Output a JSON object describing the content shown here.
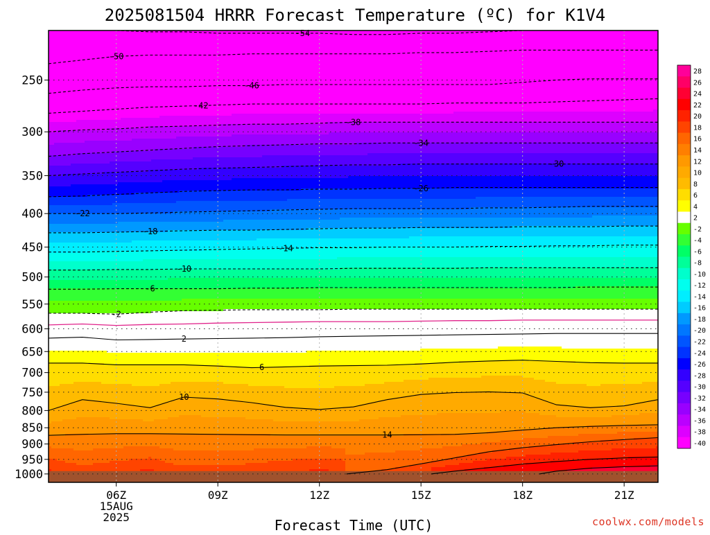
{
  "chart_data": {
    "type": "heatmap",
    "title": "2025081504 HRRR Forecast Temperature (ºC) for K1V4",
    "xlabel": "Forecast Time (UTC)",
    "ylabel": "",
    "x_ticks": [
      {
        "hour": 6,
        "lines": [
          "06Z",
          "15AUG",
          "2025"
        ]
      },
      {
        "hour": 9,
        "lines": [
          "09Z"
        ]
      },
      {
        "hour": 12,
        "lines": [
          "12Z"
        ]
      },
      {
        "hour": 15,
        "lines": [
          "15Z"
        ]
      },
      {
        "hour": 18,
        "lines": [
          "18Z"
        ]
      },
      {
        "hour": 21,
        "lines": [
          "21Z"
        ]
      }
    ],
    "x_range_hours": [
      4,
      22
    ],
    "y_axis": {
      "log_scale": true,
      "direction": "pressure decreasing upward",
      "range_hpa": [
        1030,
        210
      ],
      "tick_labels": [
        "250",
        "300",
        "350",
        "400",
        "450",
        "500",
        "550",
        "600",
        "650",
        "700",
        "750",
        "800",
        "850",
        "900",
        "950",
        "1000"
      ],
      "grid": "dotted"
    },
    "colorbar": {
      "levels": [
        28,
        26,
        24,
        22,
        20,
        18,
        16,
        14,
        12,
        10,
        8,
        6,
        4,
        2,
        -2,
        -4,
        -6,
        -8,
        -10,
        -12,
        -14,
        -16,
        -18,
        -20,
        -22,
        -24,
        -26,
        -28,
        -30,
        -32,
        -34,
        -36,
        -38,
        -40
      ],
      "colors": [
        "#ff0099",
        "#ff0066",
        "#ff0033",
        "#ff0000",
        "#ff2200",
        "#ff4400",
        "#ff6600",
        "#ff7f00",
        "#ff9900",
        "#ffaa00",
        "#ffbb00",
        "#ffdd00",
        "#ffff00",
        "#ffffff",
        "#66ff00",
        "#33ff33",
        "#00ff66",
        "#00ff99",
        "#00ffcc",
        "#00ffee",
        "#00eeff",
        "#00ccff",
        "#0099ff",
        "#0077ff",
        "#0055ff",
        "#0033ff",
        "#0000ff",
        "#3300ff",
        "#5500ff",
        "#7700ff",
        "#9900ff",
        "#bb00ff",
        "#dd00ff",
        "#ff00ff"
      ],
      "ground_color": "#a0522d"
    },
    "hours": [
      4,
      5,
      6,
      7,
      8,
      9,
      10,
      11,
      12,
      13,
      14,
      15,
      16,
      17,
      18,
      19,
      20,
      21,
      22
    ],
    "isotherms": [
      {
        "value": -54,
        "label": "-54",
        "label_at_hour": 11.5,
        "color": "#000000",
        "dashed": true,
        "p": [
          208,
          209,
          210,
          211,
          211,
          212,
          212,
          212,
          212,
          213,
          213,
          212,
          212,
          211,
          210,
          210,
          210,
          210,
          210
        ]
      },
      {
        "value": -50,
        "label": "-50",
        "label_at_hour": 6,
        "color": "#000000",
        "dashed": true,
        "p": [
          236,
          233,
          230,
          229,
          229,
          229,
          228,
          228,
          228,
          228,
          228,
          227,
          227,
          226,
          225,
          225,
          225,
          225,
          225
        ]
      },
      {
        "value": -46,
        "label": "-46",
        "label_at_hour": 10,
        "color": "#000000",
        "dashed": true,
        "p": [
          262,
          259,
          257,
          256,
          256,
          255,
          255,
          254,
          254,
          254,
          254,
          254,
          254,
          254,
          252,
          250,
          249,
          249,
          249
        ]
      },
      {
        "value": -42,
        "label": "-42",
        "label_at_hour": 8.5,
        "color": "#000000",
        "dashed": true,
        "p": [
          281,
          279,
          277,
          275,
          274,
          273,
          272,
          272,
          272,
          272,
          272,
          272,
          271,
          271,
          271,
          270,
          269,
          268,
          267
        ]
      },
      {
        "value": -38,
        "label": "-38",
        "label_at_hour": 13,
        "color": "#000000",
        "dashed": true,
        "p": [
          300,
          298,
          297,
          295,
          294,
          293,
          292,
          292,
          291,
          290,
          290,
          290,
          290,
          290,
          290,
          290,
          290,
          290,
          290
        ]
      },
      {
        "value": -34,
        "label": "-34",
        "label_at_hour": 15,
        "color": "#000000",
        "dashed": true,
        "p": [
          327,
          324,
          322,
          320,
          318,
          316,
          315,
          314,
          313,
          313,
          312,
          312,
          312,
          312,
          312,
          312,
          312,
          312,
          312
        ]
      },
      {
        "value": -30,
        "label": "-30",
        "label_at_hour": 19,
        "color": "#000000",
        "dashed": true,
        "p": [
          350,
          348,
          346,
          344,
          342,
          341,
          340,
          339,
          338,
          337,
          337,
          336,
          336,
          336,
          336,
          336,
          336,
          336,
          336
        ]
      },
      {
        "value": -26,
        "label": "-26",
        "label_at_hour": 15,
        "color": "#000000",
        "dashed": true,
        "p": [
          377,
          376,
          374,
          372,
          370,
          369,
          368,
          368,
          367,
          367,
          366,
          366,
          365,
          365,
          365,
          365,
          365,
          365,
          365
        ]
      },
      {
        "value": -22,
        "label": "-22",
        "label_at_hour": 5,
        "color": "#000000",
        "dashed": true,
        "p": [
          400,
          400,
          400,
          399,
          398,
          397,
          396,
          395,
          394,
          393,
          393,
          393,
          393,
          392,
          392,
          391,
          390,
          390,
          390
        ]
      },
      {
        "value": -18,
        "label": "-18",
        "label_at_hour": 7,
        "color": "#000000",
        "dashed": true,
        "p": [
          428,
          428,
          427,
          426,
          425,
          424,
          424,
          423,
          422,
          421,
          421,
          420,
          420,
          420,
          419,
          419,
          419,
          418,
          418
        ]
      },
      {
        "value": -14,
        "label": "-14",
        "label_at_hour": 11,
        "color": "#000000",
        "dashed": true,
        "p": [
          458,
          458,
          457,
          456,
          455,
          454,
          453,
          452,
          451,
          451,
          450,
          450,
          450,
          449,
          449,
          448,
          448,
          447,
          447
        ]
      },
      {
        "value": -10,
        "label": "-10",
        "label_at_hour": 8,
        "color": "#000000",
        "dashed": true,
        "p": [
          488,
          488,
          487,
          487,
          486,
          486,
          486,
          486,
          486,
          485,
          485,
          485,
          485,
          484,
          484,
          484,
          484,
          484,
          484
        ]
      },
      {
        "value": -6,
        "label": "-6",
        "label_at_hour": 7,
        "color": "#000000",
        "dashed": true,
        "p": [
          522,
          522,
          521,
          521,
          521,
          521,
          520,
          520,
          519,
          519,
          519,
          519,
          519,
          519,
          519,
          519,
          518,
          518,
          518
        ]
      },
      {
        "value": -2,
        "label": "-2",
        "label_at_hour": 6,
        "color": "#000000",
        "dashed": true,
        "p": [
          568,
          568,
          570,
          566,
          563,
          562,
          561,
          561,
          561,
          560,
          560,
          560,
          560,
          560,
          560,
          560,
          560,
          560,
          560
        ]
      },
      {
        "value": 0,
        "label": "",
        "label_at_hour": null,
        "color": "#e0218a",
        "dashed": false,
        "p": [
          592,
          590,
          593,
          591,
          590,
          588,
          587,
          586,
          585,
          585,
          585,
          584,
          583,
          583,
          582,
          582,
          582,
          582,
          582
        ]
      },
      {
        "value": 2,
        "label": "2",
        "label_at_hour": 8,
        "color": "#000000",
        "dashed": false,
        "p": [
          620,
          618,
          624,
          623,
          622,
          621,
          620,
          619,
          617,
          616,
          615,
          614,
          613,
          612,
          611,
          610,
          610,
          610,
          610
        ]
      },
      {
        "value": 6,
        "label": "6",
        "label_at_hour": 10.3,
        "color": "#000000",
        "dashed": false,
        "p": [
          677,
          677,
          681,
          681,
          681,
          684,
          688,
          686,
          684,
          683,
          682,
          679,
          675,
          672,
          670,
          673,
          676,
          677,
          677
        ]
      },
      {
        "value": 10,
        "label": "10",
        "label_at_hour": 8,
        "color": "#000000",
        "dashed": false,
        "p": [
          800,
          770,
          780,
          792,
          763,
          768,
          778,
          791,
          797,
          790,
          770,
          756,
          751,
          749,
          752,
          784,
          792,
          787,
          770
        ]
      },
      {
        "value": 14,
        "label": "14",
        "label_at_hour": 14,
        "color": "#000000",
        "dashed": false,
        "p": [
          873,
          870,
          868,
          868,
          869,
          870,
          871,
          872,
          872,
          872,
          872,
          871,
          870,
          865,
          857,
          850,
          846,
          843,
          841
        ]
      }
    ],
    "warm_isotherms": [
      {
        "value": 18,
        "start_hour": 12.8,
        "color": "#000000",
        "hours": [
          12.8,
          14,
          15,
          16,
          17,
          18,
          19,
          20,
          21,
          22
        ],
        "p": [
          1000,
          985,
          965,
          945,
          925,
          912,
          902,
          893,
          886,
          880
        ]
      },
      {
        "value": 22,
        "start_hour": 15.3,
        "color": "#000000",
        "hours": [
          15.3,
          16,
          17,
          18,
          19,
          20,
          21,
          22
        ],
        "p": [
          1000,
          990,
          978,
          966,
          957,
          950,
          945,
          942
        ]
      },
      {
        "value": 24,
        "start_hour": 18.5,
        "color": "#000000",
        "hours": [
          18.5,
          19,
          20,
          21,
          22
        ],
        "p": [
          1000,
          990,
          980,
          975,
          972
        ]
      }
    ],
    "surface_pressure_hpa": 990
  },
  "footer": {
    "credit": "coolwx.com/models"
  }
}
